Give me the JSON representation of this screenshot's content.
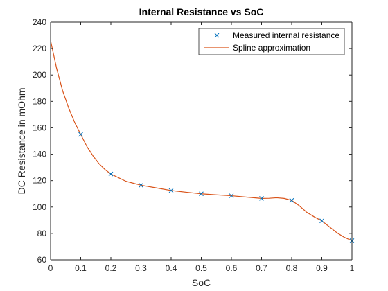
{
  "chart_data": {
    "type": "line",
    "title": "Internal Resistance vs SoC",
    "xlabel": "SoC",
    "ylabel": "DC Resistance in mOhm",
    "xlim": [
      0,
      1
    ],
    "ylim": [
      60,
      240
    ],
    "xticks": [
      "0",
      "0.1",
      "0.2",
      "0.3",
      "0.4",
      "0.5",
      "0.6",
      "0.7",
      "0.8",
      "0.9",
      "1"
    ],
    "yticks": [
      "60",
      "80",
      "100",
      "120",
      "140",
      "160",
      "180",
      "200",
      "220",
      "240"
    ],
    "grid": false,
    "legend_position": "top-right",
    "series": [
      {
        "name": "Measured internal resistance",
        "kind": "markers",
        "marker": "x",
        "color": "#0072bd",
        "x": [
          0.1,
          0.2,
          0.3,
          0.4,
          0.5,
          0.6,
          0.7,
          0.8,
          0.9,
          1.0
        ],
        "y": [
          155,
          125,
          116.5,
          112.5,
          110,
          108.5,
          106.5,
          105,
          89.5,
          74.5
        ]
      },
      {
        "name": "Spline approximation",
        "kind": "line",
        "color": "#d95319",
        "x": [
          0,
          0.02,
          0.04,
          0.06,
          0.08,
          0.1,
          0.12,
          0.14,
          0.16,
          0.18,
          0.2,
          0.25,
          0.3,
          0.35,
          0.4,
          0.45,
          0.5,
          0.55,
          0.6,
          0.65,
          0.7,
          0.725,
          0.75,
          0.775,
          0.8,
          0.825,
          0.85,
          0.875,
          0.9,
          0.925,
          0.95,
          0.975,
          1.0
        ],
        "y": [
          226,
          205,
          188,
          175,
          164,
          155,
          146,
          139,
          133,
          128.5,
          125,
          119.5,
          116.5,
          114.5,
          112.5,
          111.2,
          110,
          109.2,
          108.5,
          107.5,
          106.5,
          106.6,
          107,
          106.5,
          105,
          101,
          96,
          92.5,
          89.5,
          85,
          80.5,
          77,
          74.5
        ]
      }
    ]
  }
}
